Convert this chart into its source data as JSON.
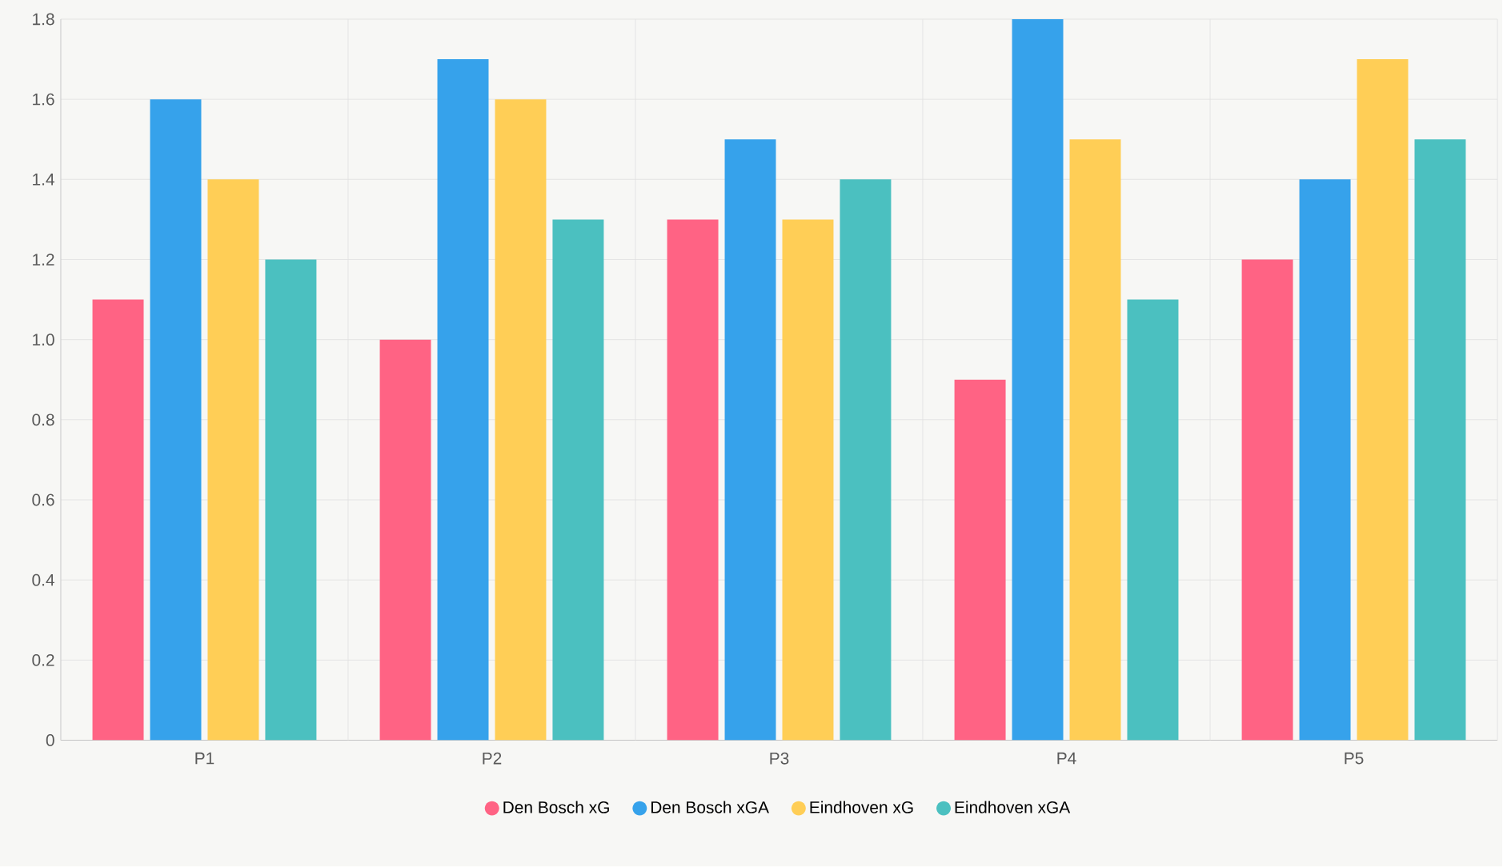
{
  "chart_data": {
    "type": "bar",
    "categories": [
      "P1",
      "P2",
      "P3",
      "P4",
      "P5"
    ],
    "series": [
      {
        "name": "Den Bosch xG",
        "color": "#ff6384",
        "values": [
          1.1,
          1.0,
          1.3,
          0.9,
          1.2
        ]
      },
      {
        "name": "Den Bosch xGA",
        "color": "#36a2eb",
        "values": [
          1.6,
          1.7,
          1.5,
          1.8,
          1.4
        ]
      },
      {
        "name": "Eindhoven xG",
        "color": "#ffce56",
        "values": [
          1.4,
          1.6,
          1.3,
          1.5,
          1.7
        ]
      },
      {
        "name": "Eindhoven xGA",
        "color": "#4bc0c0",
        "values": [
          1.2,
          1.3,
          1.4,
          1.1,
          1.5
        ]
      }
    ],
    "ylim": [
      0,
      1.8
    ],
    "yticks": [
      0,
      0.2,
      0.4,
      0.6,
      0.8,
      {
        "value": 1,
        "label": "1.0"
      },
      1.2,
      1.4,
      1.6,
      1.8
    ],
    "grid": true,
    "legend": "bottom"
  }
}
